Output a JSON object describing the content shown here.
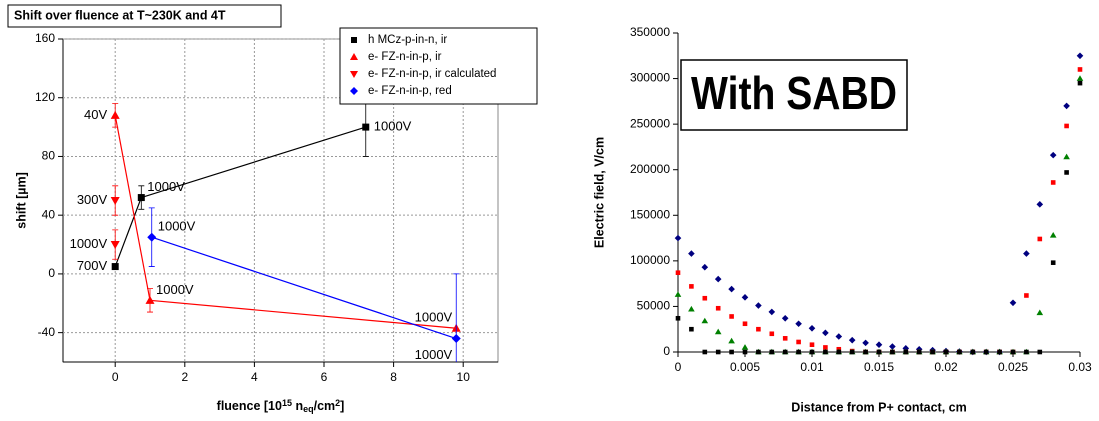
{
  "chart_data": [
    {
      "type": "scatter",
      "title": "Shift over fluence at T~230K and 4T",
      "ylabel": "shift [µm]",
      "xlabel": "fluence [10^15 n_eq/cm^2]",
      "xlim": [
        -1.5,
        11
      ],
      "xticks": [
        0,
        2,
        4,
        6,
        8,
        10
      ],
      "ylim": [
        -60,
        160
      ],
      "yticks": [
        -40,
        0,
        40,
        80,
        120,
        160
      ],
      "grid": true,
      "legend": "upper right",
      "series": [
        {
          "name": "h  MCz-p-in-n, ir",
          "color": "#000000",
          "marker": "square",
          "line": true,
          "x": [
            0,
            0.75,
            7.2
          ],
          "values": [
            5,
            52,
            100
          ],
          "errors": [
            null,
            8,
            20
          ],
          "point_labels": [
            "700V",
            "1000V",
            "1000V"
          ]
        },
        {
          "name": "e- FZ-n-in-p, ir",
          "color": "#ff0000",
          "marker": "triangle-up",
          "line": true,
          "x": [
            0,
            1,
            9.8
          ],
          "values": [
            108,
            -18,
            -37
          ],
          "errors": [
            8,
            8,
            null
          ],
          "point_labels": [
            "40V",
            "1000V",
            "1000V"
          ]
        },
        {
          "name": "e- FZ-n-in-p, ir calculated",
          "color": "#ff0000",
          "marker": "triangle-down",
          "line": false,
          "x": [
            0,
            0
          ],
          "values": [
            50,
            20
          ],
          "errors": [
            10,
            10
          ],
          "point_labels": [
            "300V",
            "1000V"
          ]
        },
        {
          "name": "e- FZ-n-in-p, red",
          "color": "#0000ff",
          "marker": "diamond",
          "line": true,
          "x": [
            1.05,
            9.8
          ],
          "values": [
            25,
            -44
          ],
          "errors": [
            20,
            44
          ],
          "point_labels": [
            "1000V",
            "1000V"
          ]
        }
      ]
    },
    {
      "type": "scatter",
      "annotation": "With SABD",
      "ylabel": "Electric field, V/cm",
      "xlabel": "Distance from P+ contact, cm",
      "xlim": [
        0,
        0.03
      ],
      "xticks": [
        0,
        0.005,
        0.01,
        0.015,
        0.02,
        0.025,
        0.03
      ],
      "ylim": [
        0,
        350000
      ],
      "yticks": [
        0,
        50000,
        100000,
        150000,
        200000,
        250000,
        300000,
        350000
      ],
      "grid": false,
      "x": [
        0,
        0.001,
        0.002,
        0.003,
        0.004,
        0.005,
        0.006,
        0.007,
        0.008,
        0.009,
        0.01,
        0.011,
        0.012,
        0.013,
        0.014,
        0.015,
        0.016,
        0.017,
        0.018,
        0.019,
        0.02,
        0.021,
        0.022,
        0.023,
        0.024,
        0.025,
        0.026,
        0.027,
        0.028,
        0.029,
        0.03
      ],
      "series": [
        {
          "color": "#000080",
          "marker": "diamond",
          "values": [
            125000,
            108000,
            93000,
            80000,
            69000,
            60000,
            51000,
            44000,
            37000,
            31000,
            26000,
            21000,
            17000,
            13000,
            10000,
            8000,
            6000,
            4000,
            3000,
            2000,
            1000,
            500,
            0,
            0,
            0,
            54000,
            108000,
            162000,
            216000,
            270000,
            325000
          ]
        },
        {
          "color": "#ff0000",
          "marker": "square",
          "values": [
            87000,
            72000,
            59000,
            48000,
            39000,
            31000,
            25000,
            20000,
            15000,
            11000,
            8000,
            5000,
            3000,
            1000,
            0,
            0,
            0,
            0,
            0,
            0,
            0,
            0,
            0,
            0,
            0,
            0,
            62000,
            124000,
            186000,
            248000,
            310000
          ]
        },
        {
          "color": "#008000",
          "marker": "triangle-up",
          "values": [
            63000,
            47000,
            34000,
            22000,
            12000,
            5000,
            0,
            0,
            0,
            0,
            0,
            0,
            0,
            0,
            0,
            0,
            0,
            0,
            0,
            0,
            0,
            0,
            0,
            0,
            0,
            0,
            0,
            43000,
            128000,
            214000,
            300000
          ]
        },
        {
          "color": "#000000",
          "marker": "square",
          "values": [
            37000,
            25000,
            0,
            0,
            0,
            0,
            0,
            0,
            0,
            0,
            0,
            0,
            0,
            0,
            0,
            0,
            0,
            0,
            0,
            0,
            0,
            0,
            0,
            0,
            0,
            0,
            0,
            0,
            98000,
            197000,
            295000
          ]
        }
      ]
    }
  ]
}
